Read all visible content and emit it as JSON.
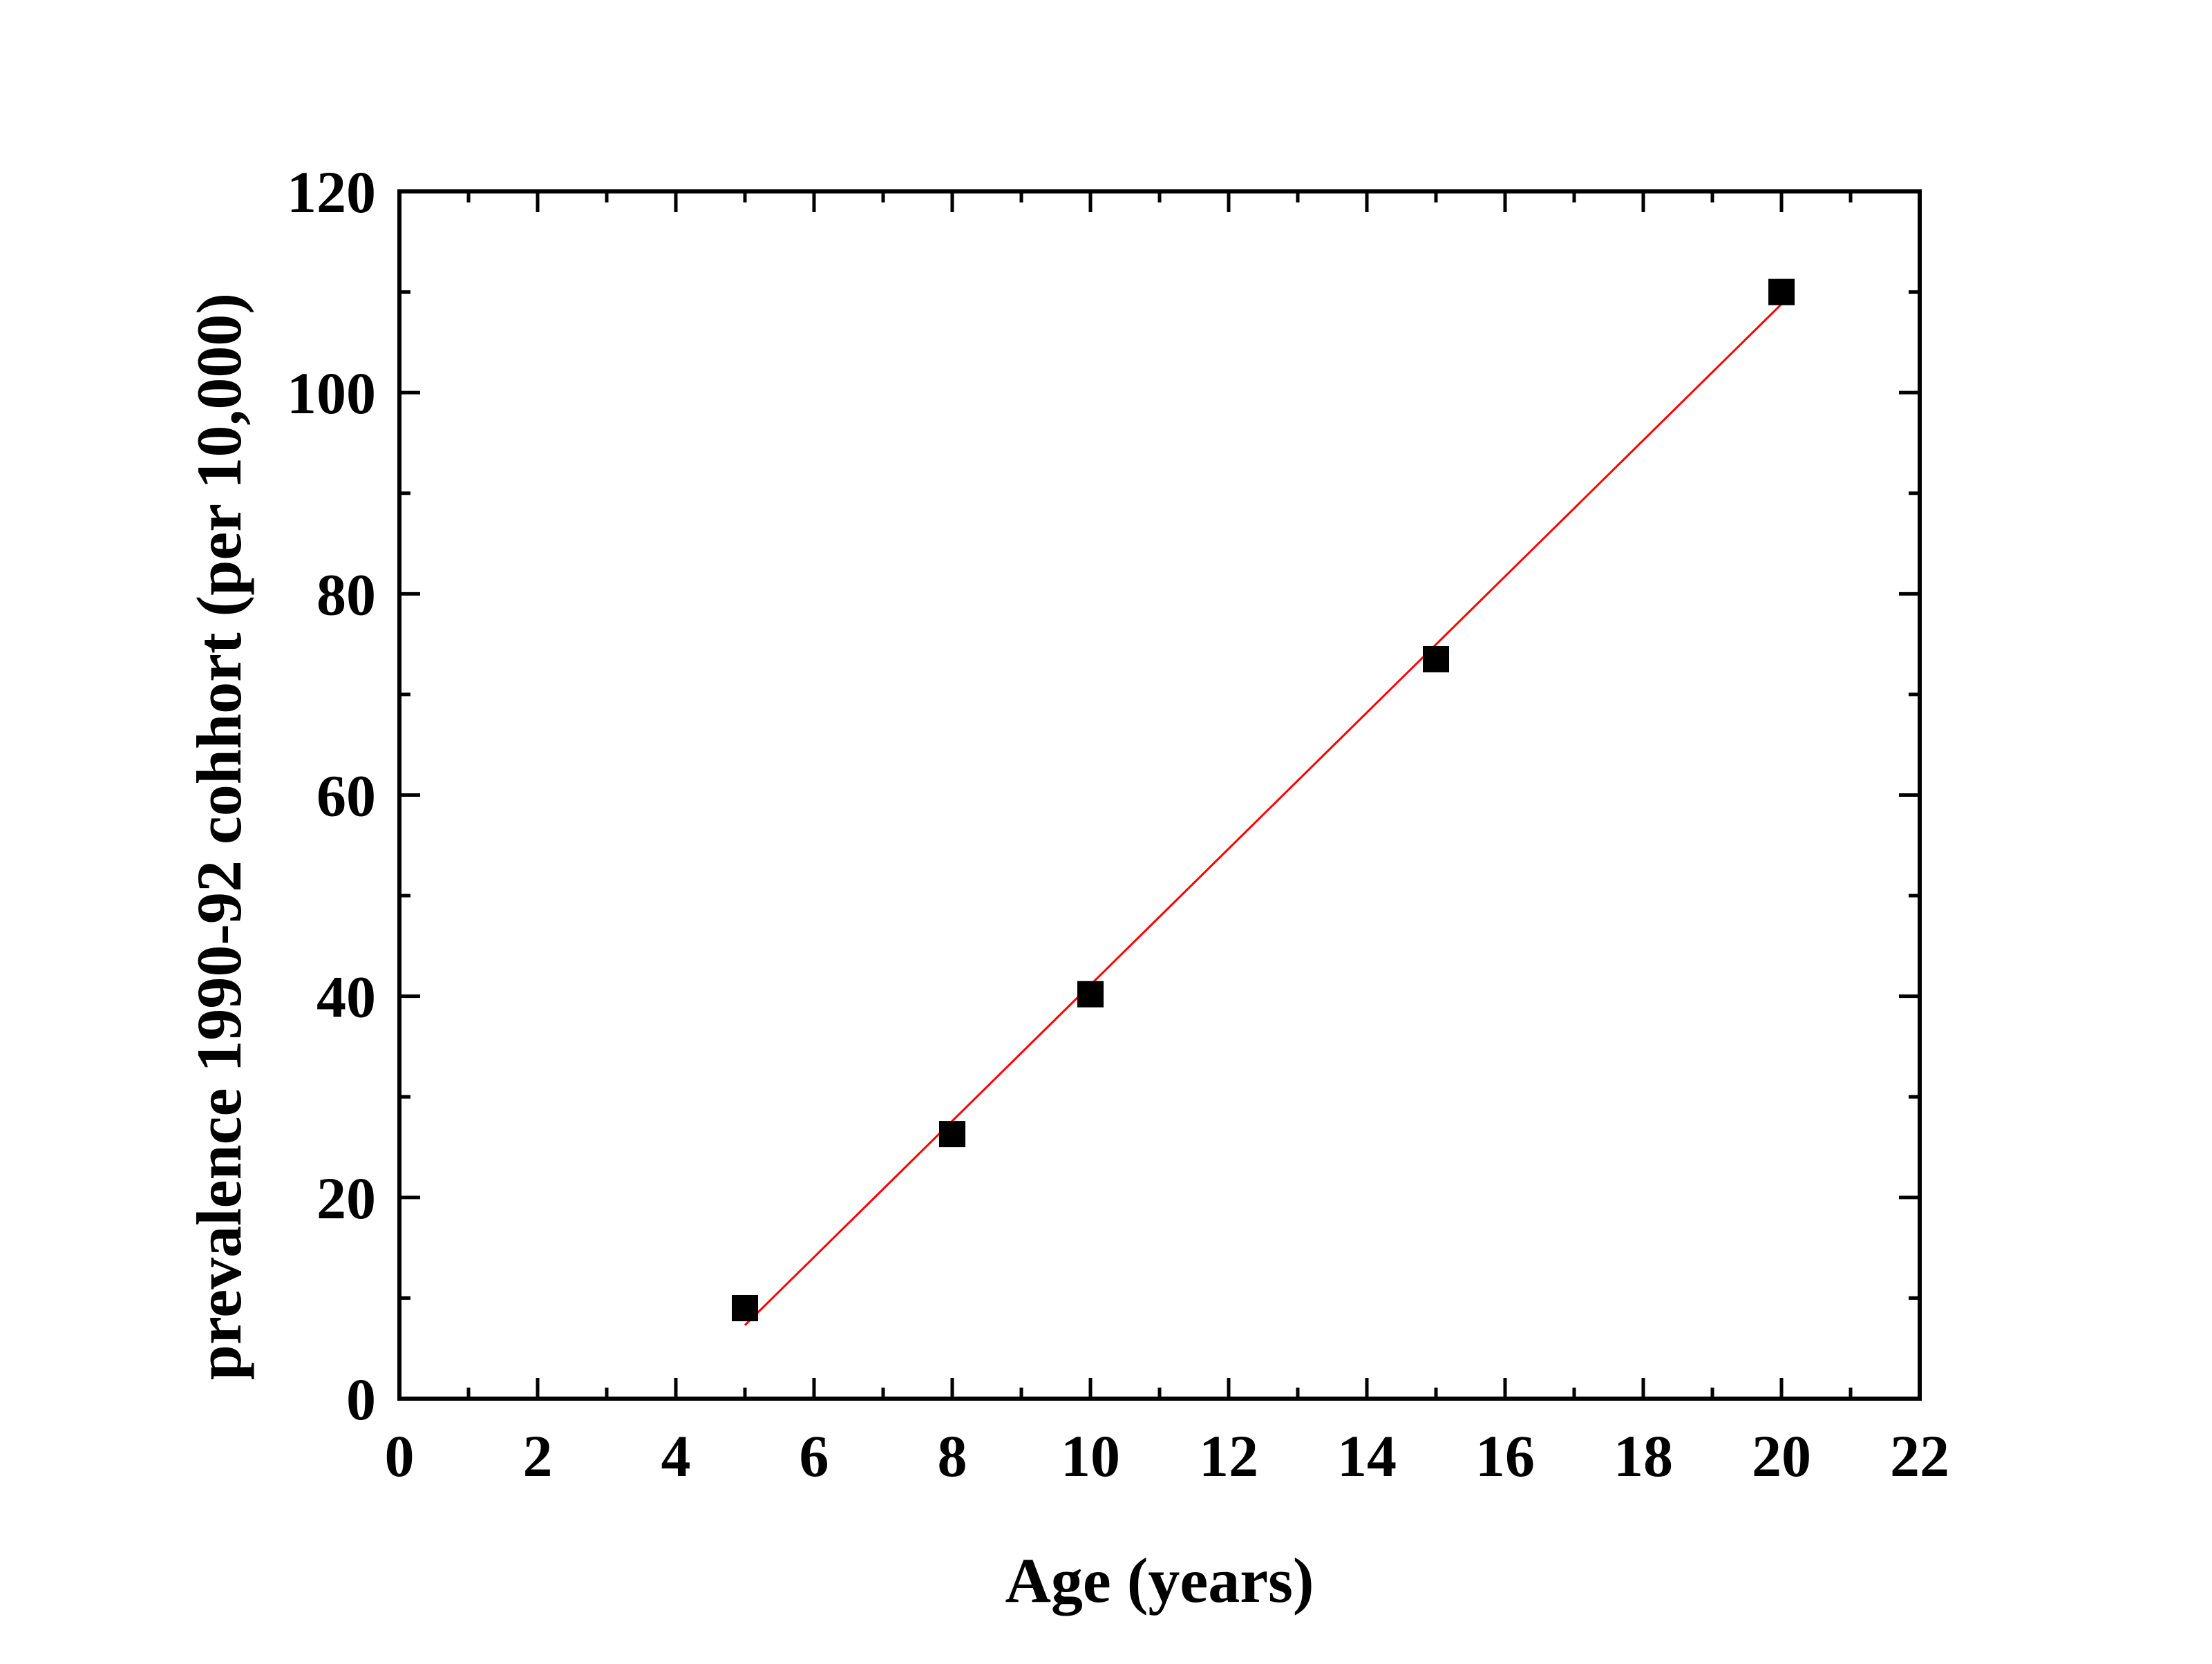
{
  "chart_data": {
    "type": "scatter",
    "xlabel": "Age (years)",
    "ylabel": "prevalence 1990-92 cohhort (per 10,000)",
    "xlim": [
      0,
      22
    ],
    "ylim": [
      0,
      120
    ],
    "x_ticks": [
      0,
      2,
      4,
      6,
      8,
      10,
      12,
      14,
      16,
      18,
      20,
      22
    ],
    "y_ticks": [
      0,
      20,
      40,
      60,
      80,
      100,
      120
    ],
    "x_minor_step": 1,
    "y_minor_step": 10,
    "grid": false,
    "series": [
      {
        "x": [
          5,
          8,
          10,
          15,
          20
        ],
        "y": [
          9,
          26.3,
          40.2,
          73.5,
          110
        ],
        "marker": "square",
        "color": "#000000"
      }
    ],
    "fit_line": {
      "x": [
        5,
        20
      ],
      "y": [
        7.3,
        108.8
      ],
      "color": "#ff0000"
    }
  }
}
